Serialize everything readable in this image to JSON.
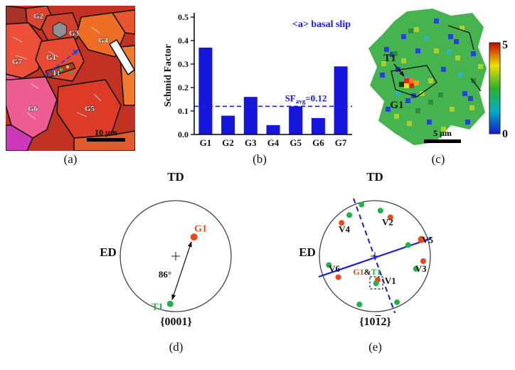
{
  "colors": {
    "bar_blue": "#1515dc",
    "accent_blue": "#1b1be0",
    "orange_point": "#e8491d",
    "green_point": "#22b14c"
  },
  "panel_a": {
    "caption": "(a)",
    "scale_bar": "10 μm",
    "labels": {
      "g1": "G1",
      "g2": "G2",
      "g3": "G3",
      "g4": "G4",
      "g5": "G5",
      "g6": "G6",
      "g7": "G7",
      "t1": "T1"
    }
  },
  "panel_b": {
    "caption": "(b)"
  },
  "panel_c": {
    "caption": "(c)",
    "scale_bar": "5 μm",
    "labels": {
      "t1": "T1",
      "g1": "G1"
    },
    "colorbar": {
      "max": "5",
      "min": "0"
    }
  },
  "panel_d": {
    "caption": "(d)",
    "pole_label": "{0001}"
  },
  "panel_e": {
    "caption": "(e)",
    "pole_label": {
      "pre": "{10",
      "bar": "1",
      "post": "2}"
    },
    "pair_label": {
      "g1": "G1",
      "amp": "&",
      "t1": "T1"
    }
  },
  "chart_data": [
    {
      "id": "schmid-factor-bars",
      "type": "bar",
      "categories": [
        "G1",
        "G2",
        "G3",
        "G4",
        "G5",
        "G6",
        "G7"
      ],
      "values": [
        0.37,
        0.08,
        0.16,
        0.04,
        0.12,
        0.07,
        0.29
      ],
      "title": "<a> basal slip",
      "ylabel": "Schmid Factor",
      "xlabel": "",
      "ylim": [
        0,
        0.5
      ],
      "yticks": [
        0,
        0.1,
        0.2,
        0.3,
        0.4,
        0.5
      ],
      "grid": false,
      "legend": "none",
      "avg_line": 0.12,
      "avg_label": {
        "pre": "SF",
        "sub": "avg",
        "post": "=0.12"
      },
      "bar_color": "#1515dc",
      "accent": "#1b1be0"
    },
    {
      "id": "pole-figure-0001",
      "type": "scatter",
      "pole_family": "{0001}",
      "axes": {
        "top": "TD",
        "left": "ED"
      },
      "annotation": "86°",
      "misorientation_deg": 86,
      "points": [
        {
          "name": "pole-point-G1",
          "x": 0.33,
          "y": -0.345,
          "r": 5,
          "color": "#e8491d"
        },
        {
          "name": "pole-point-T1",
          "x": -0.1,
          "y": 0.86,
          "r": 4.5,
          "color": "#22b14c"
        }
      ],
      "point_labels": [
        {
          "text": "G1",
          "x": 0.45,
          "y": -0.44,
          "color": "#e8491d",
          "size": 14
        },
        {
          "text": "T1",
          "x": -0.33,
          "y": 0.97,
          "color": "#22b14c",
          "size": 14
        }
      ]
    },
    {
      "id": "pole-figure-10-12",
      "type": "scatter",
      "pole_family": "{10-12}",
      "axes": {
        "top": "TD",
        "left": "ED"
      },
      "points": [
        {
          "name": "v2-green",
          "x": 0.1,
          "y": -0.82,
          "color": "#22b14c"
        },
        {
          "name": "v2-orange",
          "x": 0.28,
          "y": -0.7,
          "color": "#e8491d"
        },
        {
          "name": "top-green",
          "x": -0.24,
          "y": -0.93,
          "color": "#22b14c"
        },
        {
          "name": "v4-green",
          "x": -0.46,
          "y": -0.74,
          "color": "#22b14c"
        },
        {
          "name": "v4-orange",
          "x": -0.6,
          "y": -0.6,
          "color": "#e8491d"
        },
        {
          "name": "v5-orange",
          "x": 0.84,
          "y": -0.3,
          "r": 5,
          "color": "#e8491d"
        },
        {
          "name": "v5-green",
          "x": 0.6,
          "y": -0.2,
          "color": "#22b14c"
        },
        {
          "name": "v3-green",
          "x": 0.74,
          "y": 0.23,
          "color": "#22b14c"
        },
        {
          "name": "v3-orange",
          "x": 0.87,
          "y": 0.09,
          "color": "#e8491d"
        },
        {
          "name": "v6-green",
          "x": -0.83,
          "y": 0.16,
          "color": "#22b14c"
        },
        {
          "name": "v6-orange",
          "x": -0.66,
          "y": 0.38,
          "color": "#e8491d"
        },
        {
          "name": "v1-orange",
          "x": 0.05,
          "y": 0.43,
          "color": "#e8491d"
        },
        {
          "name": "v1-green",
          "x": 0.02,
          "y": 0.49,
          "color": "#22b14c"
        },
        {
          "name": "bottom-left-green",
          "x": -0.28,
          "y": 0.87,
          "color": "#22b14c"
        },
        {
          "name": "bottom-right-green",
          "x": 0.4,
          "y": 0.83,
          "color": "#22b14c"
        }
      ],
      "point_labels": [
        {
          "text": "V4",
          "x": -0.55,
          "y": -0.43
        },
        {
          "text": "V2",
          "x": 0.23,
          "y": -0.56
        },
        {
          "text": "V5",
          "x": 0.95,
          "y": -0.24
        },
        {
          "text": "V6",
          "x": -0.73,
          "y": 0.28
        },
        {
          "text": "V3",
          "x": 0.83,
          "y": 0.28
        },
        {
          "text": "V1",
          "x": 0.28,
          "y": 0.5
        }
      ]
    }
  ]
}
